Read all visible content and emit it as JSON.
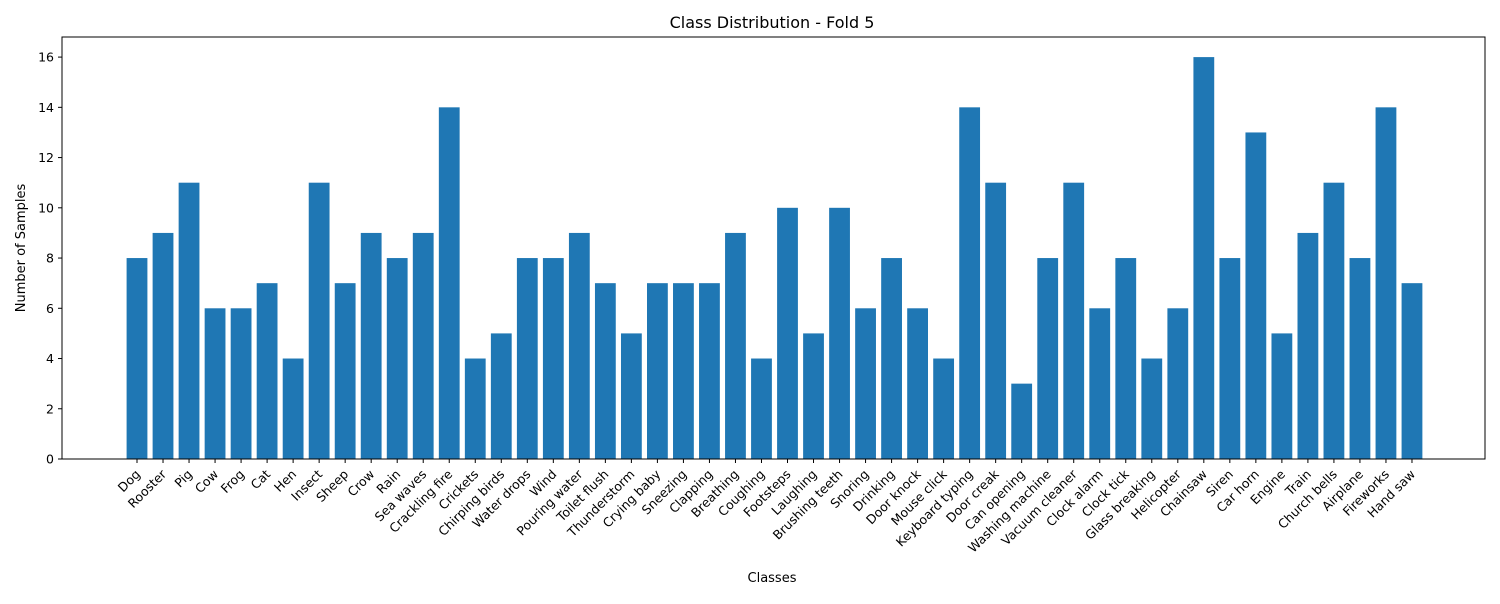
{
  "chart_data": {
    "type": "bar",
    "title": "Class Distribution - Fold 5",
    "xlabel": "Classes",
    "ylabel": "Number of Samples",
    "ylim": [
      0,
      16.8
    ],
    "yticks": [
      0,
      2,
      4,
      6,
      8,
      10,
      12,
      14,
      16
    ],
    "grid": false,
    "legend": "none",
    "bar_color": "#1f77b4",
    "categories": [
      "Dog",
      "Rooster",
      "Pig",
      "Cow",
      "Frog",
      "Cat",
      "Hen",
      "Insect",
      "Sheep",
      "Crow",
      "Rain",
      "Sea waves",
      "Crackling fire",
      "Crickets",
      "Chirping birds",
      "Water drops",
      "Wind",
      "Pouring water",
      "Toilet flush",
      "Thunderstorm",
      "Crying baby",
      "Sneezing",
      "Clapping",
      "Breathing",
      "Coughing",
      "Footsteps",
      "Laughing",
      "Brushing teeth",
      "Snoring",
      "Drinking",
      "Door knock",
      "Mouse click",
      "Keyboard typing",
      "Door creak",
      "Can opening",
      "Washing machine",
      "Vacuum cleaner",
      "Clock alarm",
      "Clock tick",
      "Glass breaking",
      "Helicopter",
      "Chainsaw",
      "Siren",
      "Car horn",
      "Engine",
      "Train",
      "Church bells",
      "Airplane",
      "Fireworks",
      "Hand saw"
    ],
    "values": [
      8,
      9,
      11,
      6,
      6,
      7,
      4,
      11,
      7,
      9,
      8,
      9,
      14,
      4,
      5,
      8,
      8,
      9,
      7,
      5,
      7,
      7,
      7,
      9,
      4,
      10,
      5,
      10,
      6,
      8,
      6,
      4,
      14,
      11,
      3,
      8,
      11,
      6,
      8,
      4,
      6,
      16,
      8,
      13,
      5,
      9,
      11,
      8,
      14,
      7
    ]
  }
}
